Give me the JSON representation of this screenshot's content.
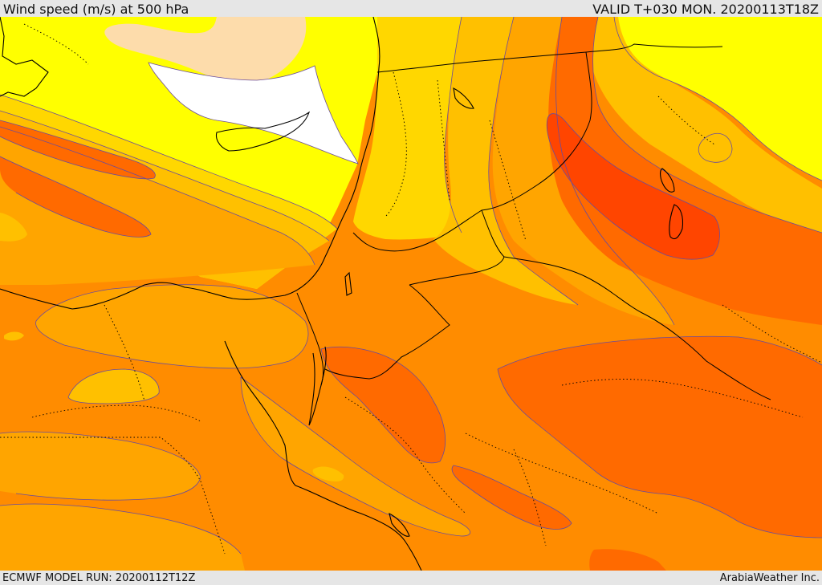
{
  "header": {
    "title": "Wind speed (m/s) at 500 hPa",
    "valid": "VALID T+030 MON. 20200113T18Z"
  },
  "footer": {
    "model_run": "ECMWF MODEL RUN: 20200112T12Z",
    "credit": "ArabiaWeather Inc."
  },
  "palette": {
    "white": "#ffffff",
    "wheat": "#fddcab",
    "yellow": "#ffff00",
    "gold": "#ffd700",
    "amber": "#ffc000",
    "orange_light": "#ffa500",
    "orange": "#ff8c00",
    "orange_dark": "#ff6a00",
    "red_orange": "#ff4500",
    "contour": "#6a4c9c",
    "outline": "#000000"
  }
}
